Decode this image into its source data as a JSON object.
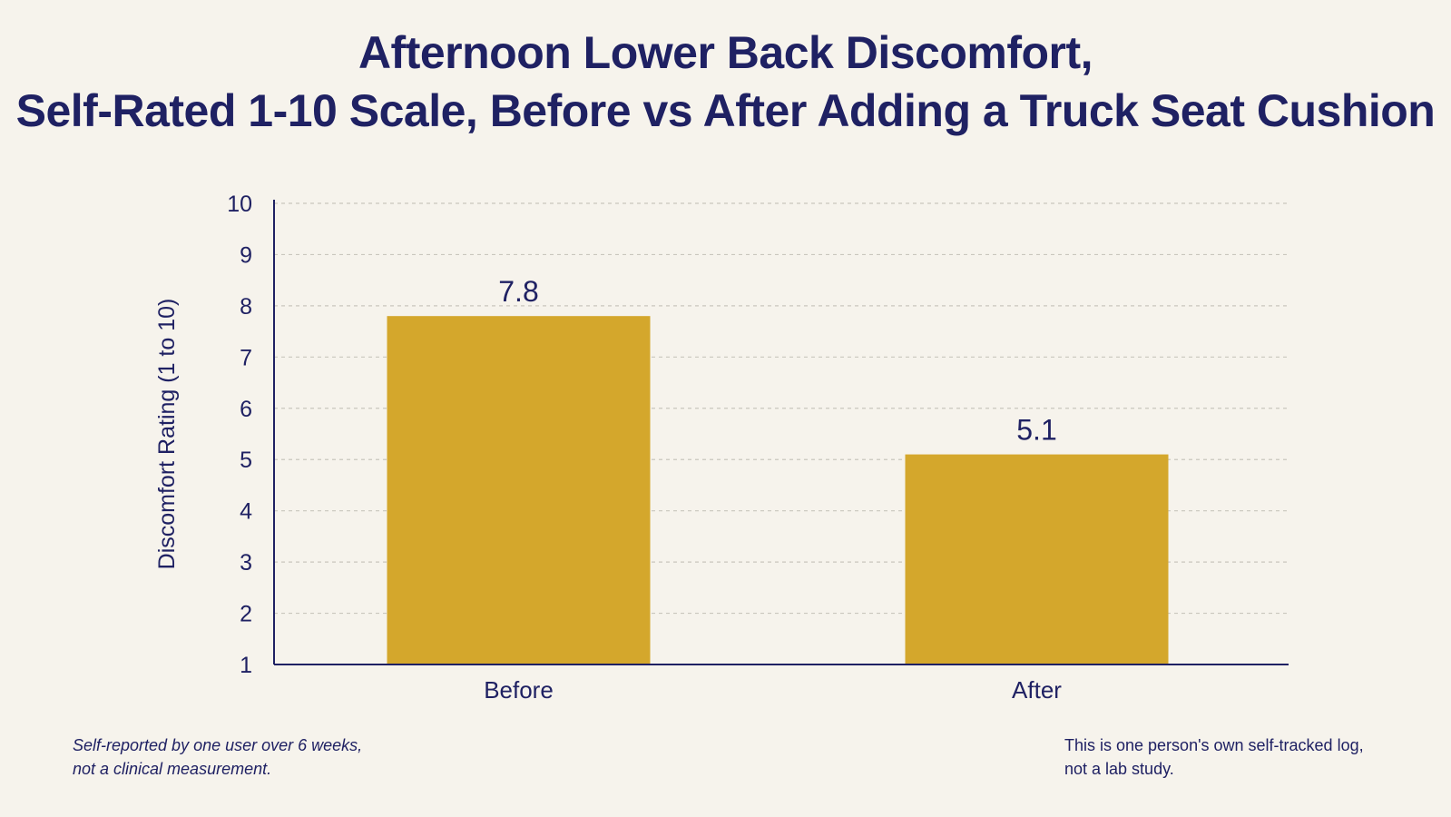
{
  "chart_data": {
    "type": "bar",
    "title_lines": [
      "Afternoon Lower Back Discomfort,",
      "Self-Rated 1-10 Scale, Before vs After Adding a Truck Seat Cushion"
    ],
    "categories": [
      "Before",
      "After"
    ],
    "values": [
      7.8,
      5.1
    ],
    "value_labels": [
      "7.8",
      "5.1"
    ],
    "xlabel": "",
    "ylabel": "Discomfort Rating (1 to 10)",
    "ylim": [
      1,
      10
    ],
    "yticks": [
      1,
      2,
      3,
      4,
      5,
      6,
      7,
      8,
      9,
      10
    ],
    "grid": true,
    "legend": "none",
    "bar_color": "#d4a72c",
    "text_color": "#1f2163",
    "axis_color": "#1f2163",
    "grid_color": "#c9c6bd",
    "background": "#f6f3ec"
  },
  "footnotes": {
    "left": [
      "Self-reported by one user over 6 weeks,",
      "not a clinical measurement."
    ],
    "right": [
      "This is one person's own self-tracked log,",
      "not a lab study."
    ]
  }
}
